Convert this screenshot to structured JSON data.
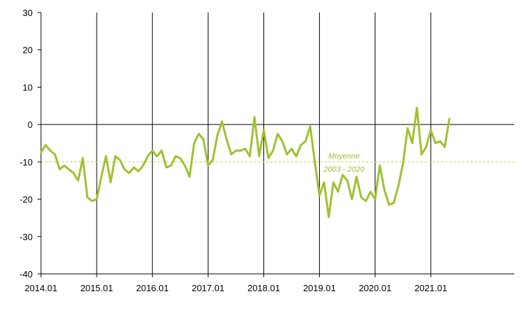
{
  "colors": {
    "series": "#9dc22f",
    "axis": "#000000",
    "gridline": "#000000",
    "reference_line": "#b5d34a",
    "background": "#ffffff"
  },
  "chart_data": {
    "type": "line",
    "title": "",
    "xlabel": "",
    "ylabel": "",
    "ylim": [
      -40,
      30
    ],
    "y_ticks": [
      "30",
      "20",
      "10",
      "0",
      "-10",
      "-20",
      "-30",
      "-40"
    ],
    "x_ticks": [
      "2014.01",
      "2015.01",
      "2016.01",
      "2017.01",
      "2018.01",
      "2019.01",
      "2020.01",
      "2021.01"
    ],
    "grid": "vertical lines at each year tick; horizontal line at 0",
    "reference_line": {
      "value": -10,
      "style": "dashed",
      "label_line1": "Moyenne",
      "label_line2": "2003 - 2020"
    },
    "series": [
      {
        "x_start": "2014.01",
        "frequency": "monthly",
        "values": [
          -7.5,
          -5.5,
          -7.0,
          -8.0,
          -12.0,
          -11.0,
          -12.0,
          -13.0,
          -15.0,
          -9.0,
          -19.5,
          -20.5,
          -20.0,
          -14.0,
          -8.5,
          -15.5,
          -8.5,
          -9.5,
          -12.0,
          -13.0,
          -11.5,
          -12.5,
          -11.0,
          -8.5,
          -7.0,
          -8.5,
          -7.0,
          -11.5,
          -11.0,
          -8.5,
          -9.0,
          -11.0,
          -14.0,
          -5.0,
          -2.5,
          -4.0,
          -11.0,
          -9.5,
          -3.0,
          0.8,
          -4.0,
          -8.0,
          -7.0,
          -7.0,
          -6.5,
          -8.5,
          2.0,
          -8.5,
          -1.5,
          -9.0,
          -7.0,
          -2.5,
          -4.5,
          -8.0,
          -6.5,
          -8.5,
          -5.5,
          -4.5,
          -0.5,
          -10.0,
          -19.0,
          -15.5,
          -24.8,
          -15.5,
          -18.0,
          -13.5,
          -15.0,
          -20.0,
          -14.0,
          -19.5,
          -20.5,
          -18.0,
          -20.0,
          -11.0,
          -17.5,
          -21.5,
          -21.0,
          -16.5,
          -10.5,
          -1.0,
          -5.0,
          4.5,
          -8.0,
          -6.0,
          -1.5,
          -5.0,
          -4.5,
          -6.0,
          1.5
        ]
      }
    ]
  }
}
